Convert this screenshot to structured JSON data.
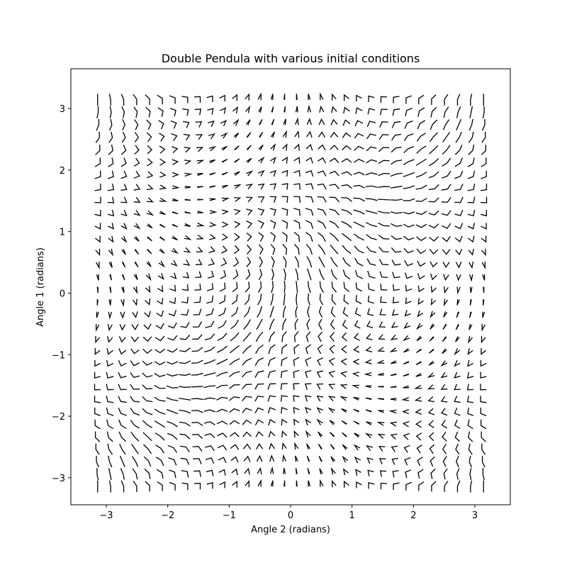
{
  "chart_data": {
    "type": "glyph-grid",
    "title": "Double Pendula with various initial conditions",
    "xlabel": "Angle 2 (radians)",
    "ylabel": "Angle 1 (radians)",
    "xlim": [
      -3.577,
      3.577
    ],
    "ylim": [
      -3.439,
      3.646
    ],
    "xticks": [
      -3,
      -2,
      -1,
      0,
      1,
      2,
      3
    ],
    "yticks": [
      -3,
      -2,
      -1,
      0,
      1,
      2,
      3
    ],
    "xtick_labels": [
      "−3",
      "−2",
      "−1",
      "0",
      "1",
      "2",
      "3"
    ],
    "ytick_labels": [
      "−3",
      "−2",
      "−1",
      "0",
      "1",
      "2",
      "3"
    ],
    "grid": false,
    "angle_range": [
      -3.14159,
      3.14159
    ],
    "grid_points_per_axis": 32,
    "line_color": "#000000"
  }
}
